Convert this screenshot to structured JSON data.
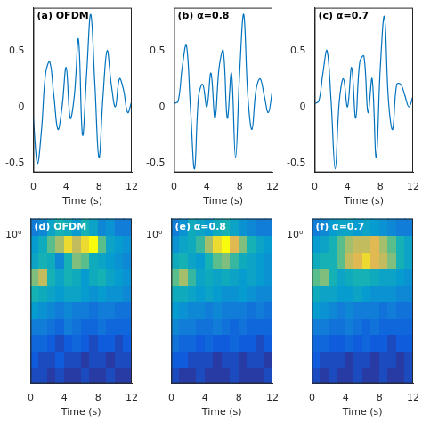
{
  "chart_data": [
    {
      "type": "line",
      "title": "(a) OFDM",
      "x_label": "Time (s)",
      "color": "#0072bd",
      "grid": false,
      "x": [
        0,
        0.5,
        1,
        1.5,
        2,
        2.5,
        3,
        3.5,
        4,
        4.5,
        5,
        5.5,
        6,
        6.5,
        7,
        7.5,
        8,
        8.5,
        9,
        9.5,
        10,
        10.5,
        11,
        11.5,
        12
      ],
      "values": [
        -0.1,
        -0.5,
        -0.2,
        0.3,
        0.4,
        0.1,
        -0.2,
        0.0,
        0.35,
        -0.1,
        0.1,
        0.6,
        -0.25,
        0.3,
        0.82,
        0.2,
        -0.45,
        0.1,
        0.5,
        0.2,
        0.0,
        0.25,
        0.15,
        -0.05,
        0.05
      ],
      "xlim": [
        0,
        12
      ],
      "xticks": [
        0,
        4,
        8,
        12
      ],
      "ylim": [
        -0.58,
        0.88
      ],
      "yticks": [
        -0.5,
        0,
        0.5
      ]
    },
    {
      "type": "line",
      "title": "(b) α=0.8",
      "x_label": "Time (s)",
      "color": "#0072bd",
      "grid": false,
      "x": [
        0,
        0.5,
        1,
        1.5,
        2,
        2.5,
        3,
        3.5,
        4,
        4.5,
        5,
        5.5,
        6,
        6.5,
        7,
        7.5,
        8,
        8.5,
        9,
        9.5,
        10,
        10.5,
        11,
        11.5,
        12
      ],
      "values": [
        0.03,
        0.05,
        0.35,
        0.55,
        0.0,
        -0.55,
        0.1,
        0.2,
        0.0,
        0.3,
        -0.1,
        0.35,
        0.5,
        -0.1,
        0.3,
        -0.45,
        0.3,
        0.82,
        0.1,
        -0.2,
        0.15,
        0.25,
        0.1,
        -0.05,
        0.15
      ],
      "xlim": [
        0,
        12
      ],
      "xticks": [
        0,
        4,
        8,
        12
      ],
      "ylim": [
        -0.58,
        0.88
      ],
      "yticks": [
        -0.5,
        0,
        0.5
      ]
    },
    {
      "type": "line",
      "title": "(c) α=0.7",
      "x_label": "Time (s)",
      "color": "#0072bd",
      "grid": false,
      "x": [
        0,
        0.5,
        1,
        1.5,
        2,
        2.5,
        3,
        3.5,
        4,
        4.5,
        5,
        5.5,
        6,
        6.5,
        7,
        7.5,
        8,
        8.5,
        9,
        9.5,
        10,
        10.5,
        11,
        11.5,
        12
      ],
      "values": [
        0.03,
        0.05,
        0.3,
        0.5,
        0.05,
        -0.55,
        0.05,
        0.25,
        0.0,
        0.35,
        -0.1,
        0.4,
        0.45,
        -0.05,
        0.25,
        -0.45,
        0.35,
        0.8,
        0.05,
        -0.2,
        0.2,
        0.2,
        0.1,
        0.0,
        0.1
      ],
      "xlim": [
        0,
        12
      ],
      "xticks": [
        0,
        4,
        8,
        12
      ],
      "ylim": [
        -0.58,
        0.88
      ],
      "yticks": [
        -0.5,
        0,
        0.5
      ]
    },
    {
      "type": "heatmap",
      "title": "(d) OFDM",
      "x_label": "Time (s)",
      "color": "parula",
      "grid": false,
      "log": "y",
      "xlim": [
        0,
        12
      ],
      "xticks": [
        0,
        4,
        8,
        12
      ],
      "ylim": [
        0.05,
        1.4
      ],
      "yticks": [
        {
          "value": 1,
          "label": "10⁰"
        }
      ],
      "x_edges": [
        0,
        1,
        2,
        3,
        4,
        5,
        6,
        7,
        8,
        9,
        10,
        11,
        12
      ],
      "y_edges": [
        0.05,
        0.07,
        0.097,
        0.136,
        0.19,
        0.265,
        0.369,
        0.515,
        0.719,
        1.003,
        1.4
      ],
      "zlim": [
        0,
        1
      ],
      "z": [
        [
          0.1,
          0.1,
          0.05,
          0.1,
          0.05,
          0.05,
          0.1,
          0.05,
          0.05,
          0.1,
          0.05,
          0.05
        ],
        [
          0.15,
          0.1,
          0.1,
          0.15,
          0.1,
          0.1,
          0.05,
          0.1,
          0.1,
          0.05,
          0.1,
          0.1
        ],
        [
          0.2,
          0.2,
          0.15,
          0.1,
          0.15,
          0.2,
          0.15,
          0.1,
          0.15,
          0.15,
          0.1,
          0.15
        ],
        [
          0.3,
          0.3,
          0.25,
          0.2,
          0.3,
          0.25,
          0.2,
          0.2,
          0.25,
          0.2,
          0.2,
          0.2
        ],
        [
          0.45,
          0.4,
          0.35,
          0.3,
          0.35,
          0.3,
          0.3,
          0.25,
          0.3,
          0.3,
          0.25,
          0.25
        ],
        [
          0.6,
          0.55,
          0.5,
          0.45,
          0.5,
          0.5,
          0.45,
          0.4,
          0.45,
          0.4,
          0.4,
          0.35
        ],
        [
          0.75,
          0.85,
          0.6,
          0.5,
          0.6,
          0.55,
          0.45,
          0.55,
          0.6,
          0.5,
          0.45,
          0.4
        ],
        [
          0.5,
          0.6,
          0.55,
          0.35,
          0.6,
          0.75,
          0.7,
          0.55,
          0.5,
          0.45,
          0.4,
          0.35
        ],
        [
          0.45,
          0.55,
          0.7,
          0.8,
          0.95,
          0.85,
          0.95,
          1.0,
          0.7,
          0.5,
          0.45,
          0.4
        ],
        [
          0.3,
          0.35,
          0.5,
          0.6,
          0.55,
          0.45,
          0.6,
          0.5,
          0.35,
          0.4,
          0.3,
          0.3
        ]
      ]
    },
    {
      "type": "heatmap",
      "title": "(e) α=0.8",
      "x_label": "Time (s)",
      "color": "parula",
      "grid": false,
      "log": "y",
      "xlim": [
        0,
        12
      ],
      "xticks": [
        0,
        4,
        8,
        12
      ],
      "ylim": [
        0.05,
        1.4
      ],
      "yticks": [
        {
          "value": 1,
          "label": "10⁰"
        }
      ],
      "x_edges": [
        0,
        1,
        2,
        3,
        4,
        5,
        6,
        7,
        8,
        9,
        10,
        11,
        12
      ],
      "y_edges": [
        0.05,
        0.07,
        0.097,
        0.136,
        0.19,
        0.265,
        0.369,
        0.515,
        0.719,
        1.003,
        1.4
      ],
      "zlim": [
        0,
        1
      ],
      "z": [
        [
          0.1,
          0.05,
          0.05,
          0.1,
          0.05,
          0.05,
          0.05,
          0.1,
          0.05,
          0.05,
          0.05,
          0.1
        ],
        [
          0.15,
          0.15,
          0.1,
          0.1,
          0.1,
          0.05,
          0.1,
          0.1,
          0.05,
          0.1,
          0.1,
          0.05
        ],
        [
          0.25,
          0.2,
          0.2,
          0.15,
          0.2,
          0.15,
          0.15,
          0.2,
          0.15,
          0.15,
          0.1,
          0.15
        ],
        [
          0.35,
          0.3,
          0.3,
          0.25,
          0.25,
          0.3,
          0.25,
          0.2,
          0.25,
          0.2,
          0.2,
          0.2
        ],
        [
          0.45,
          0.4,
          0.35,
          0.35,
          0.3,
          0.35,
          0.3,
          0.3,
          0.3,
          0.25,
          0.3,
          0.25
        ],
        [
          0.55,
          0.55,
          0.5,
          0.45,
          0.5,
          0.45,
          0.4,
          0.4,
          0.45,
          0.4,
          0.35,
          0.35
        ],
        [
          0.7,
          0.8,
          0.65,
          0.5,
          0.55,
          0.5,
          0.55,
          0.5,
          0.45,
          0.5,
          0.45,
          0.4
        ],
        [
          0.55,
          0.6,
          0.5,
          0.45,
          0.6,
          0.7,
          0.75,
          0.65,
          0.55,
          0.5,
          0.45,
          0.4
        ],
        [
          0.4,
          0.5,
          0.55,
          0.65,
          0.8,
          0.95,
          1.0,
          0.9,
          0.75,
          0.6,
          0.5,
          0.45
        ],
        [
          0.3,
          0.4,
          0.55,
          0.5,
          0.45,
          0.55,
          0.6,
          0.5,
          0.4,
          0.35,
          0.3,
          0.3
        ]
      ]
    },
    {
      "type": "heatmap",
      "title": "(f) α=0.7",
      "x_label": "Time (s)",
      "color": "parula",
      "grid": false,
      "log": "y",
      "xlim": [
        0,
        12
      ],
      "xticks": [
        0,
        4,
        8,
        12
      ],
      "ylim": [
        0.05,
        1.4
      ],
      "yticks": [
        {
          "value": 1,
          "label": "10⁰"
        }
      ],
      "x_edges": [
        0,
        1,
        2,
        3,
        4,
        5,
        6,
        7,
        8,
        9,
        10,
        11,
        12
      ],
      "y_edges": [
        0.05,
        0.07,
        0.097,
        0.136,
        0.19,
        0.265,
        0.369,
        0.515,
        0.719,
        1.003,
        1.4
      ],
      "zlim": [
        0,
        1
      ],
      "z": [
        [
          0.1,
          0.05,
          0.1,
          0.05,
          0.05,
          0.1,
          0.05,
          0.05,
          0.1,
          0.05,
          0.05,
          0.1
        ],
        [
          0.15,
          0.1,
          0.1,
          0.1,
          0.05,
          0.1,
          0.1,
          0.05,
          0.1,
          0.1,
          0.05,
          0.1
        ],
        [
          0.2,
          0.2,
          0.15,
          0.15,
          0.2,
          0.15,
          0.2,
          0.15,
          0.15,
          0.1,
          0.15,
          0.15
        ],
        [
          0.3,
          0.3,
          0.25,
          0.25,
          0.3,
          0.25,
          0.2,
          0.25,
          0.2,
          0.2,
          0.2,
          0.2
        ],
        [
          0.45,
          0.4,
          0.35,
          0.3,
          0.35,
          0.3,
          0.3,
          0.3,
          0.25,
          0.3,
          0.25,
          0.25
        ],
        [
          0.55,
          0.5,
          0.5,
          0.45,
          0.45,
          0.5,
          0.45,
          0.4,
          0.4,
          0.4,
          0.35,
          0.35
        ],
        [
          0.7,
          0.75,
          0.6,
          0.5,
          0.55,
          0.6,
          0.6,
          0.55,
          0.5,
          0.5,
          0.45,
          0.4
        ],
        [
          0.55,
          0.6,
          0.6,
          0.7,
          0.85,
          0.9,
          0.95,
          0.9,
          0.85,
          0.75,
          0.6,
          0.5
        ],
        [
          0.45,
          0.5,
          0.6,
          0.7,
          0.8,
          0.85,
          0.85,
          0.9,
          0.8,
          0.7,
          0.6,
          0.5
        ],
        [
          0.3,
          0.35,
          0.45,
          0.5,
          0.5,
          0.45,
          0.5,
          0.45,
          0.4,
          0.35,
          0.3,
          0.3
        ]
      ]
    }
  ]
}
